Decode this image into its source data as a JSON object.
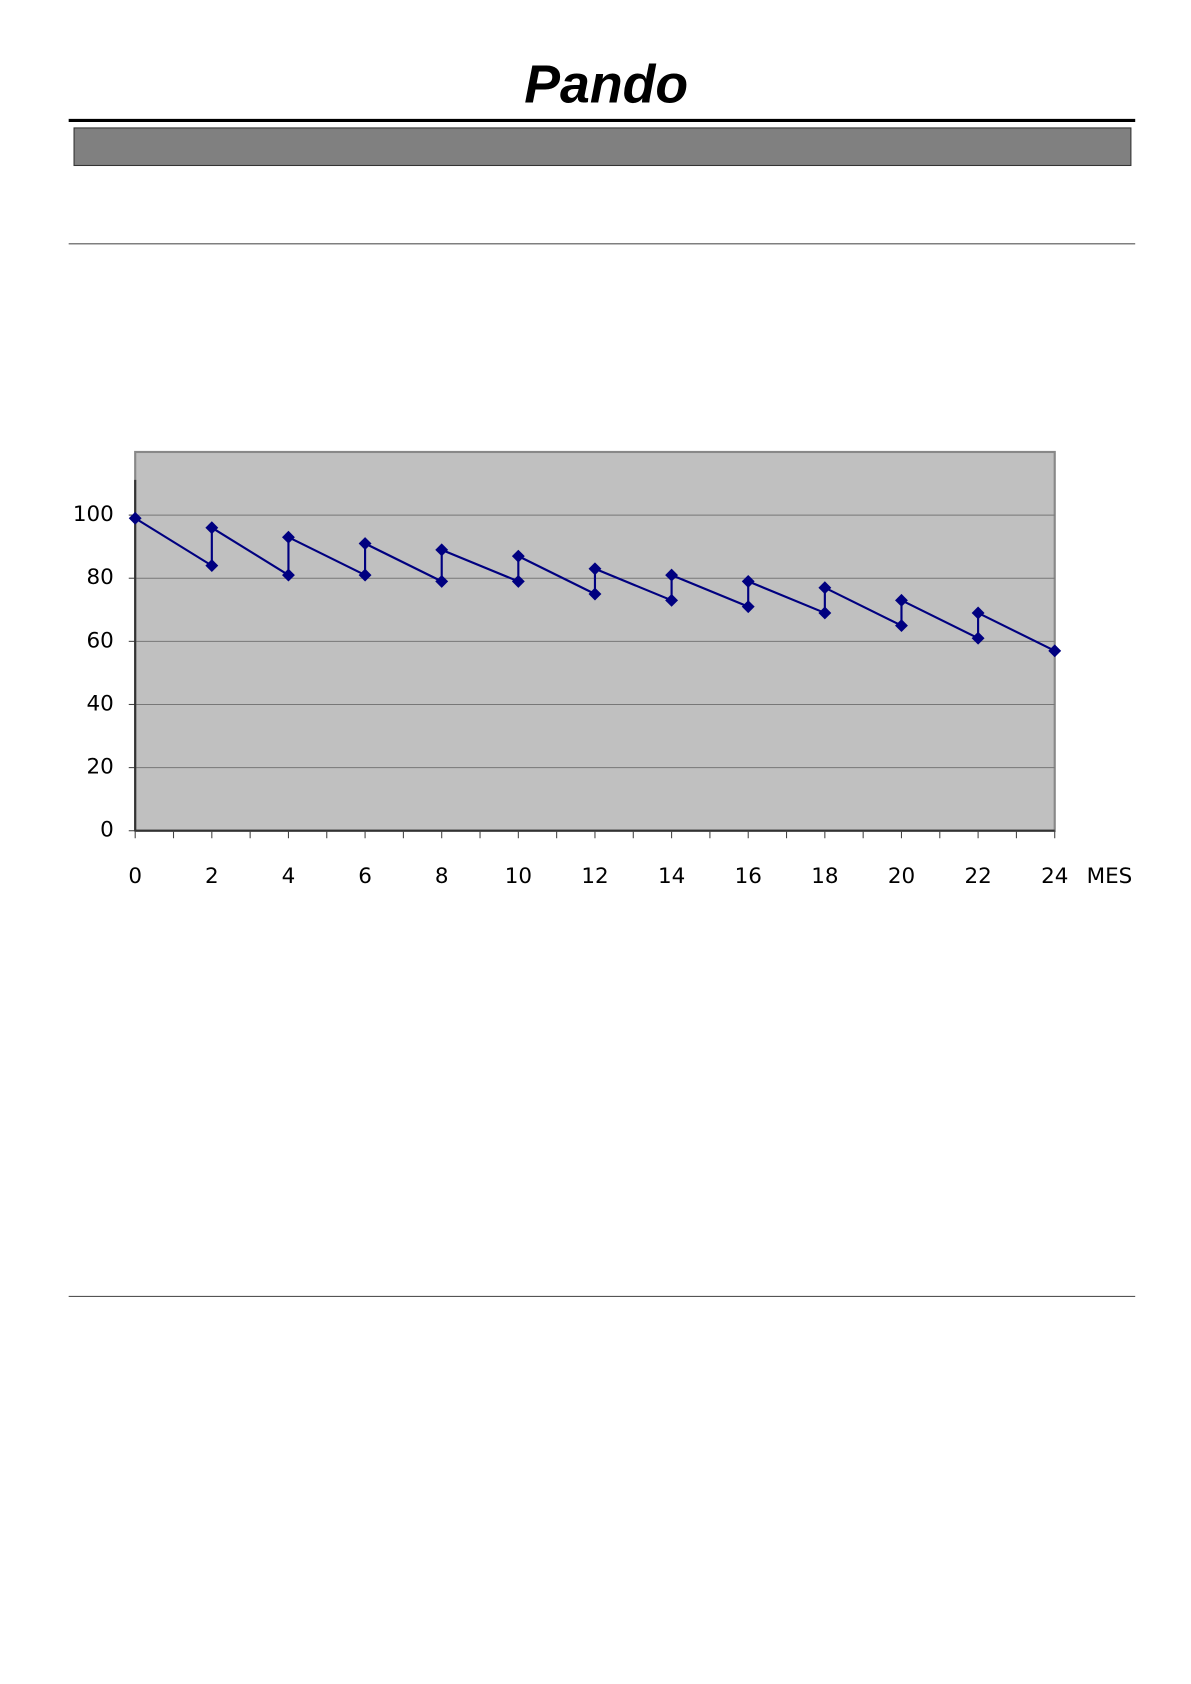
{
  "header": {
    "logo": "Pando"
  },
  "chart_data": {
    "type": "line",
    "x_label": "MES",
    "series": [
      {
        "color": "#000080",
        "x": [
          0,
          2,
          2,
          4,
          4,
          6,
          6,
          8,
          8,
          10,
          10,
          12,
          12,
          14,
          14,
          16,
          16,
          18,
          18,
          20,
          20,
          22,
          22,
          24
        ],
        "values": [
          99,
          84,
          96,
          81,
          93,
          81,
          91,
          79,
          89,
          79,
          87,
          75,
          83,
          73,
          81,
          71,
          79,
          69,
          77,
          65,
          73,
          61,
          69,
          57
        ]
      }
    ],
    "xlim": [
      0,
      24
    ],
    "xticks": [
      0,
      2,
      4,
      6,
      8,
      10,
      12,
      14,
      16,
      18,
      20,
      22,
      24
    ],
    "x_minor_ticks": [
      1,
      3,
      5,
      7,
      9,
      11,
      13,
      15,
      17,
      19,
      21,
      23
    ],
    "ylim": [
      0,
      120
    ],
    "yticks": [
      0,
      20,
      40,
      60,
      80,
      100
    ],
    "grid": true
  }
}
